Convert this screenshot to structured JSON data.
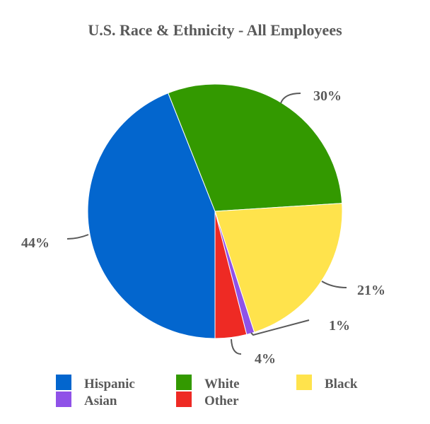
{
  "chart_data": {
    "type": "pie",
    "title": "U.S. Race & Ethnicity - All Employees",
    "categories": [
      "Hispanic",
      "White",
      "Black",
      "Asian",
      "Other"
    ],
    "values": [
      44,
      30,
      21,
      1,
      4
    ],
    "labels": [
      "44%",
      "30%",
      "21%",
      "1%",
      "4%"
    ],
    "colors": [
      "#0366CE",
      "#339900",
      "#FFE34C",
      "#8F52E8",
      "#EE2A24"
    ],
    "legend_position": "bottom",
    "start_angle_deg": 180,
    "direction": "clockwise"
  }
}
